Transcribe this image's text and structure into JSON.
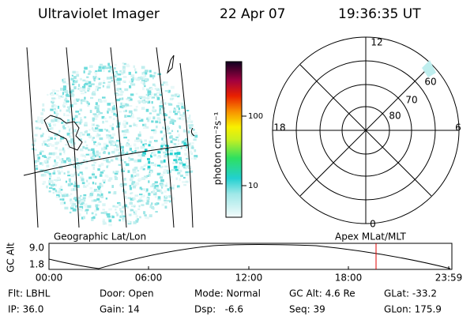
{
  "header": {
    "title": "Ultraviolet Imager",
    "date": "22 Apr 07",
    "time": "19:36:35 UT"
  },
  "colorbar": {
    "label": "photon cm⁻²s⁻¹",
    "ticks": [
      "100",
      "10"
    ]
  },
  "polar": {
    "hour_labels": [
      "12",
      "18",
      "6",
      "0"
    ],
    "lat_labels": [
      "60",
      "70",
      "80"
    ]
  },
  "panel_labels": {
    "left": "Geographic Lat/Lon",
    "right": "Apex MLat/MLT"
  },
  "altitude": {
    "axis_label": "GC Alt",
    "ticks": [
      "9.0",
      "1.8"
    ],
    "time_ticks": [
      "00:00",
      "06:00",
      "12:00",
      "18:00",
      "23:59"
    ]
  },
  "info": [
    [
      "Flt: LBHL",
      "Door: Open",
      "Mode: Normal",
      "GC Alt: 4.6 Re",
      "GLat: -33.2"
    ],
    [
      "IP: 36.0",
      "Gain: 14",
      "Dsp:   -6.6",
      "Seq: 39",
      "GLon: 175.9"
    ]
  ]
}
